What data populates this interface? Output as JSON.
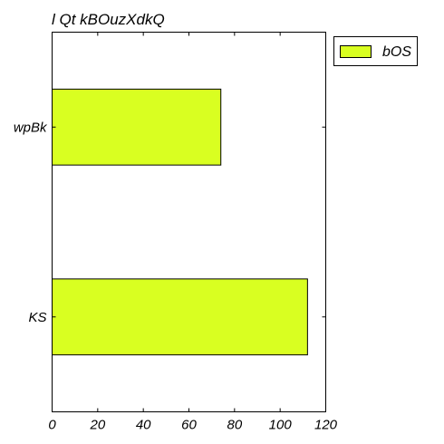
{
  "chart_data": {
    "type": "bar",
    "orientation": "horizontal",
    "title": "l Qt kBOuzXdkQ",
    "xlabel": "",
    "ylabel": "",
    "categories": [
      "wpBk",
      "KS"
    ],
    "series": [
      {
        "name": "bOS",
        "values": [
          74,
          112
        ],
        "color": "#d9ff21"
      }
    ],
    "xlim": [
      0,
      120
    ],
    "xticks": [
      0,
      20,
      40,
      60,
      80,
      100,
      120
    ],
    "grid": false,
    "legend": {
      "placement": "outside-top-right"
    }
  }
}
